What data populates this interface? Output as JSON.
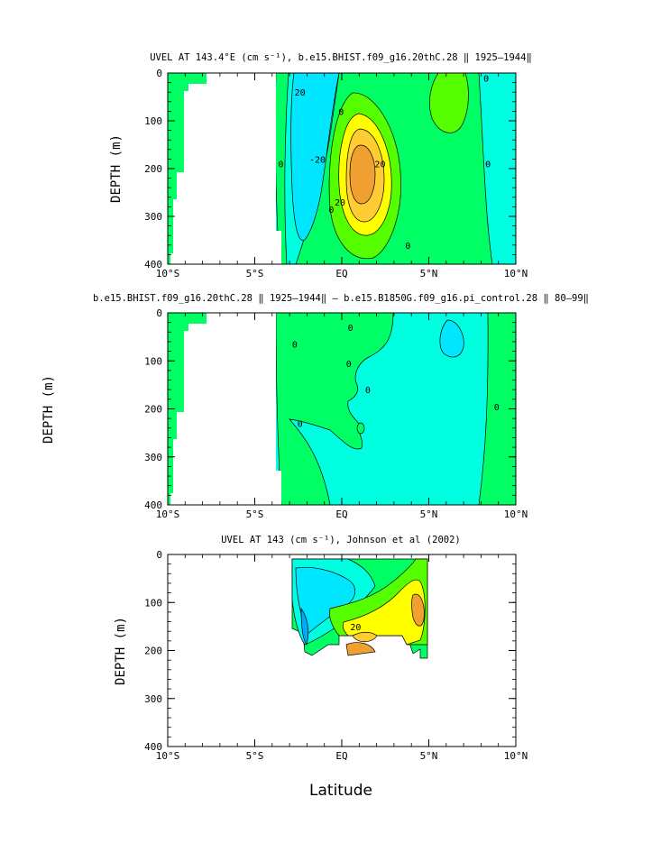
{
  "chart_data": [
    {
      "type": "contour",
      "title": "UVEL AT 143.4°E (cm s⁻¹), b.e15.BHIST.f09_g16.20thC.28 ‖ 1925–1944‖",
      "ylabel": "DEPTH (m)",
      "xlabel": "",
      "x_ticks": [
        "10°S",
        "5°S",
        "EQ",
        "5°N",
        "10°N"
      ],
      "y_ticks": [
        "0",
        "100",
        "200",
        "300",
        "400"
      ],
      "xlim": [
        -10,
        10
      ],
      "ylim": [
        400,
        0
      ],
      "contour_labels": [
        {
          "text": "20",
          "x": -2.4,
          "y": 40
        },
        {
          "text": "-20",
          "x": -1.4,
          "y": 180
        },
        {
          "text": "20",
          "x": 2.2,
          "y": 190
        },
        {
          "text": "20",
          "x": -0.1,
          "y": 270
        },
        {
          "text": "0",
          "x": -0.04,
          "y": 80
        },
        {
          "text": "0",
          "x": -3.5,
          "y": 190
        },
        {
          "text": "0",
          "x": -0.6,
          "y": 285
        },
        {
          "text": "0",
          "x": 3.8,
          "y": 360
        },
        {
          "text": "0",
          "x": 8.3,
          "y": 10
        },
        {
          "text": "0",
          "x": 8.4,
          "y": 190
        }
      ]
    },
    {
      "type": "contour",
      "title": "b.e15.BHIST.f09_g16.20thC.28 ‖ 1925–1944‖ – b.e15.B1850G.f09_g16.pi_control.28 ‖ 80–99‖",
      "ylabel": "DEPTH (m)",
      "xlabel": "",
      "x_ticks": [
        "10°S",
        "5°S",
        "EQ",
        "5°N",
        "10°N"
      ],
      "y_ticks": [
        "0",
        "100",
        "200",
        "300",
        "400"
      ],
      "xlim": [
        -10,
        10
      ],
      "ylim": [
        400,
        0
      ],
      "contour_labels": [
        {
          "text": "0",
          "x": -2.7,
          "y": 65
        },
        {
          "text": "0",
          "x": -2.4,
          "y": 230
        },
        {
          "text": "0",
          "x": 0.5,
          "y": 30
        },
        {
          "text": "0",
          "x": 1.5,
          "y": 160
        },
        {
          "text": "0",
          "x": 8.9,
          "y": 195
        },
        {
          "text": "0",
          "x": 0.4,
          "y": 105
        }
      ]
    },
    {
      "type": "contour",
      "title": "UVEL AT 143 (cm s⁻¹), Johnson et al (2002)",
      "ylabel": "DEPTH (m)",
      "xlabel": "Latitude",
      "x_ticks": [
        "10°S",
        "5°S",
        "EQ",
        "5°N",
        "10°N"
      ],
      "y_ticks": [
        "0",
        "100",
        "200",
        "300",
        "400"
      ],
      "xlim": [
        -10,
        10
      ],
      "ylim": [
        400,
        0
      ],
      "contour_labels": [
        {
          "text": "20",
          "x": 0.8,
          "y": 150
        }
      ]
    }
  ],
  "colors": {
    "cyan_strong": "#00e6ff",
    "cyan": "#00ffe0",
    "green": "#00ff64",
    "lime": "#55ff00",
    "yellow": "#ffff00",
    "gold": "#ffcc33",
    "orange": "#f0a030",
    "deep_blue": "#00aaff"
  }
}
